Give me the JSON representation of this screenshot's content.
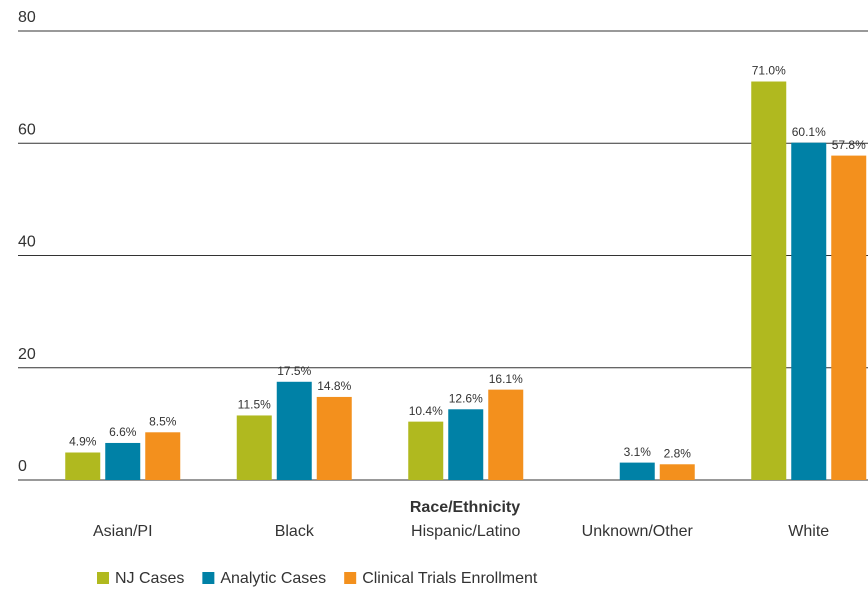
{
  "chart_data": {
    "type": "bar",
    "x_label": "Race/Ethnicity",
    "categories": [
      "Asian/PI",
      "Black",
      "Hispanic/Latino",
      "Unknown/Other",
      "White"
    ],
    "series": [
      {
        "name": "NJ Cases",
        "color": "#b0b91f",
        "values": [
          4.9,
          11.5,
          10.4,
          null,
          71.0
        ],
        "value_labels": [
          "4.9%",
          "11.5%",
          "10.4%",
          null,
          "71.0%"
        ]
      },
      {
        "name": "Analytic Cases",
        "color": "#0081a6",
        "values": [
          6.6,
          17.5,
          12.6,
          3.1,
          60.1
        ],
        "value_labels": [
          "6.6%",
          "17.5%",
          "12.6%",
          "3.1%",
          "60.1%"
        ]
      },
      {
        "name": "Clinical Trials Enrollment",
        "color": "#f3901d",
        "values": [
          8.5,
          14.8,
          16.1,
          2.8,
          57.8
        ],
        "value_labels": [
          "8.5%",
          "14.8%",
          "16.1%",
          "2.8%",
          "57.8%"
        ]
      }
    ],
    "ylim": [
      0,
      80
    ],
    "yticks": [
      0,
      20,
      40,
      60,
      80
    ],
    "grid": true,
    "legend": "bottom"
  }
}
